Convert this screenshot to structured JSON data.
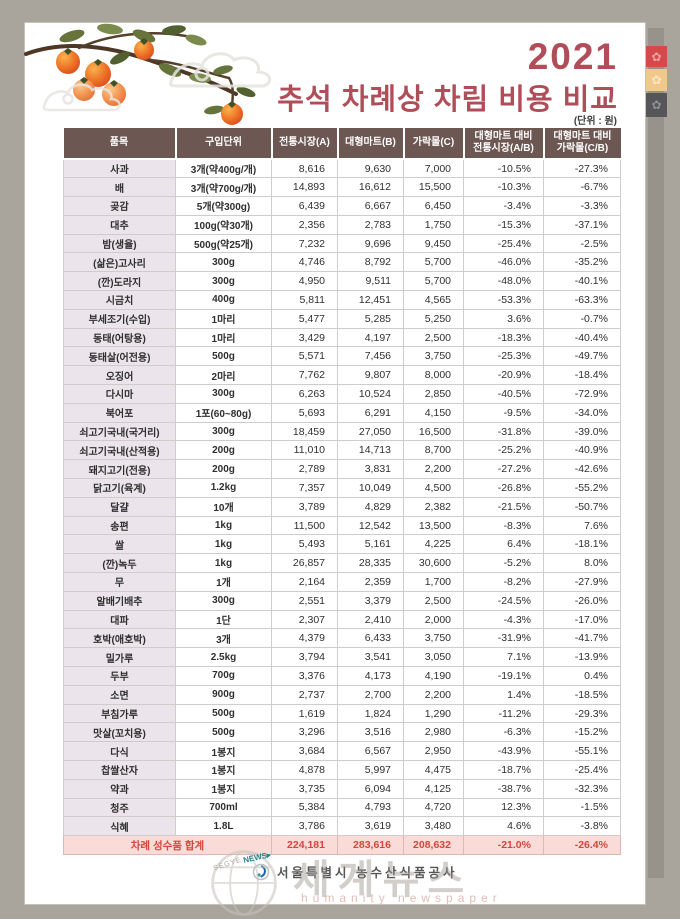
{
  "page": {
    "year": "2021",
    "title": "추석 차례상 차림 비용 비교",
    "unit_note": "(단위 : 원)",
    "footer_org": "서울특별시 농수산식품공사",
    "watermark": {
      "main": "세계뉴스",
      "sub": "humanity newspaper",
      "stamp_top": "SEGYE",
      "stamp_news": "NEWS▸"
    },
    "decor_icons": [
      "persimmon-branch-icon",
      "scroll-cloud-icon",
      "flower-medallion-icon",
      "globe-icon",
      "org-logo-icon"
    ],
    "colors": {
      "canvas_bg": "#a9a49c",
      "page_bg": "#ffffff",
      "title_accent": "#b04d58",
      "header_bg": "#6d5752",
      "item_col_bg": "#ebe4ea",
      "total_bg": "#f9dcd7",
      "total_text": "#d6453b",
      "right_strip": "#97928a",
      "stamp_red": "#d6494b",
      "stamp_amber": "#f0c88c",
      "stamp_gray": "#55555a"
    }
  },
  "table": {
    "headers": [
      "품목",
      "구입단위",
      "전통시장(A)",
      "대형마트(B)",
      "가락몰(C)",
      "대형마트 대비\n전통시장(A/B)",
      "대형마트 대비\n가락몰(C/B)"
    ],
    "rows": [
      {
        "item": "사과",
        "unit": "3개(약400g/개)",
        "a": "8,616",
        "b": "9,630",
        "c": "7,000",
        "ab": "-10.5%",
        "cb": "-27.3%"
      },
      {
        "item": "배",
        "unit": "3개(약700g/개)",
        "a": "14,893",
        "b": "16,612",
        "c": "15,500",
        "ab": "-10.3%",
        "cb": "-6.7%"
      },
      {
        "item": "곶감",
        "unit": "5개(약300g)",
        "a": "6,439",
        "b": "6,667",
        "c": "6,450",
        "ab": "-3.4%",
        "cb": "-3.3%"
      },
      {
        "item": "대추",
        "unit": "100g(약30개)",
        "a": "2,356",
        "b": "2,783",
        "c": "1,750",
        "ab": "-15.3%",
        "cb": "-37.1%"
      },
      {
        "item": "밤(생율)",
        "unit": "500g(약25개)",
        "a": "7,232",
        "b": "9,696",
        "c": "9,450",
        "ab": "-25.4%",
        "cb": "-2.5%"
      },
      {
        "item": "(삶은)고사리",
        "unit": "300g",
        "a": "4,746",
        "b": "8,792",
        "c": "5,700",
        "ab": "-46.0%",
        "cb": "-35.2%"
      },
      {
        "item": "(깐)도라지",
        "unit": "300g",
        "a": "4,950",
        "b": "9,511",
        "c": "5,700",
        "ab": "-48.0%",
        "cb": "-40.1%"
      },
      {
        "item": "시금치",
        "unit": "400g",
        "a": "5,811",
        "b": "12,451",
        "c": "4,565",
        "ab": "-53.3%",
        "cb": "-63.3%"
      },
      {
        "item": "부세조기(수입)",
        "unit": "1마리",
        "a": "5,477",
        "b": "5,285",
        "c": "5,250",
        "ab": "3.6%",
        "cb": "-0.7%"
      },
      {
        "item": "동태(어탕용)",
        "unit": "1마리",
        "a": "3,429",
        "b": "4,197",
        "c": "2,500",
        "ab": "-18.3%",
        "cb": "-40.4%"
      },
      {
        "item": "동태살(어전용)",
        "unit": "500g",
        "a": "5,571",
        "b": "7,456",
        "c": "3,750",
        "ab": "-25.3%",
        "cb": "-49.7%"
      },
      {
        "item": "오징어",
        "unit": "2마리",
        "a": "7,762",
        "b": "9,807",
        "c": "8,000",
        "ab": "-20.9%",
        "cb": "-18.4%"
      },
      {
        "item": "다시마",
        "unit": "300g",
        "a": "6,263",
        "b": "10,524",
        "c": "2,850",
        "ab": "-40.5%",
        "cb": "-72.9%"
      },
      {
        "item": "북어포",
        "unit": "1포(60~80g)",
        "a": "5,693",
        "b": "6,291",
        "c": "4,150",
        "ab": "-9.5%",
        "cb": "-34.0%"
      },
      {
        "item": "쇠고기국내(국거리)",
        "unit": "300g",
        "a": "18,459",
        "b": "27,050",
        "c": "16,500",
        "ab": "-31.8%",
        "cb": "-39.0%"
      },
      {
        "item": "쇠고기국내(산적용)",
        "unit": "200g",
        "a": "11,010",
        "b": "14,713",
        "c": "8,700",
        "ab": "-25.2%",
        "cb": "-40.9%"
      },
      {
        "item": "돼지고기(전용)",
        "unit": "200g",
        "a": "2,789",
        "b": "3,831",
        "c": "2,200",
        "ab": "-27.2%",
        "cb": "-42.6%"
      },
      {
        "item": "닭고기(육계)",
        "unit": "1.2kg",
        "a": "7,357",
        "b": "10,049",
        "c": "4,500",
        "ab": "-26.8%",
        "cb": "-55.2%"
      },
      {
        "item": "달걀",
        "unit": "10개",
        "a": "3,789",
        "b": "4,829",
        "c": "2,382",
        "ab": "-21.5%",
        "cb": "-50.7%"
      },
      {
        "item": "송편",
        "unit": "1kg",
        "a": "11,500",
        "b": "12,542",
        "c": "13,500",
        "ab": "-8.3%",
        "cb": "7.6%"
      },
      {
        "item": "쌀",
        "unit": "1kg",
        "a": "5,493",
        "b": "5,161",
        "c": "4,225",
        "ab": "6.4%",
        "cb": "-18.1%"
      },
      {
        "item": "(깐)녹두",
        "unit": "1kg",
        "a": "26,857",
        "b": "28,335",
        "c": "30,600",
        "ab": "-5.2%",
        "cb": "8.0%"
      },
      {
        "item": "무",
        "unit": "1개",
        "a": "2,164",
        "b": "2,359",
        "c": "1,700",
        "ab": "-8.2%",
        "cb": "-27.9%"
      },
      {
        "item": "알배기배추",
        "unit": "300g",
        "a": "2,551",
        "b": "3,379",
        "c": "2,500",
        "ab": "-24.5%",
        "cb": "-26.0%"
      },
      {
        "item": "대파",
        "unit": "1단",
        "a": "2,307",
        "b": "2,410",
        "c": "2,000",
        "ab": "-4.3%",
        "cb": "-17.0%"
      },
      {
        "item": "호박(애호박)",
        "unit": "3개",
        "a": "4,379",
        "b": "6,433",
        "c": "3,750",
        "ab": "-31.9%",
        "cb": "-41.7%"
      },
      {
        "item": "밀가루",
        "unit": "2.5kg",
        "a": "3,794",
        "b": "3,541",
        "c": "3,050",
        "ab": "7.1%",
        "cb": "-13.9%"
      },
      {
        "item": "두부",
        "unit": "700g",
        "a": "3,376",
        "b": "4,173",
        "c": "4,190",
        "ab": "-19.1%",
        "cb": "0.4%"
      },
      {
        "item": "소면",
        "unit": "900g",
        "a": "2,737",
        "b": "2,700",
        "c": "2,200",
        "ab": "1.4%",
        "cb": "-18.5%"
      },
      {
        "item": "부침가루",
        "unit": "500g",
        "a": "1,619",
        "b": "1,824",
        "c": "1,290",
        "ab": "-11.2%",
        "cb": "-29.3%"
      },
      {
        "item": "맛살(꼬치용)",
        "unit": "500g",
        "a": "3,296",
        "b": "3,516",
        "c": "2,980",
        "ab": "-6.3%",
        "cb": "-15.2%"
      },
      {
        "item": "다식",
        "unit": "1봉지",
        "a": "3,684",
        "b": "6,567",
        "c": "2,950",
        "ab": "-43.9%",
        "cb": "-55.1%"
      },
      {
        "item": "찹쌀산자",
        "unit": "1봉지",
        "a": "4,878",
        "b": "5,997",
        "c": "4,475",
        "ab": "-18.7%",
        "cb": "-25.4%"
      },
      {
        "item": "약과",
        "unit": "1봉지",
        "a": "3,735",
        "b": "6,094",
        "c": "4,125",
        "ab": "-38.7%",
        "cb": "-32.3%"
      },
      {
        "item": "청주",
        "unit": "700ml",
        "a": "5,384",
        "b": "4,793",
        "c": "4,720",
        "ab": "12.3%",
        "cb": "-1.5%"
      },
      {
        "item": "식혜",
        "unit": "1.8L",
        "a": "3,786",
        "b": "3,619",
        "c": "3,480",
        "ab": "4.6%",
        "cb": "-3.8%"
      }
    ],
    "total": {
      "label": "차례 성수품 합계",
      "a": "224,181",
      "b": "283,616",
      "c": "208,632",
      "ab": "-21.0%",
      "cb": "-26.4%"
    }
  }
}
